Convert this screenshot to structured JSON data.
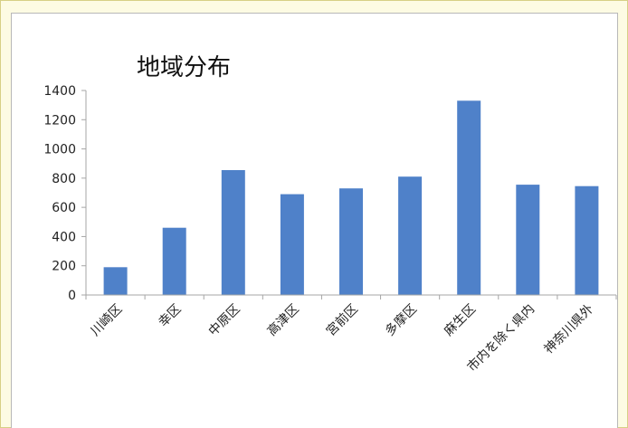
{
  "chart_data": {
    "type": "bar",
    "title": "地域分布",
    "xlabel": "",
    "ylabel": "",
    "categories": [
      "川崎区",
      "幸区",
      "中原区",
      "高津区",
      "宮前区",
      "多摩区",
      "麻生区",
      "市内を除く県内",
      "神奈川県外"
    ],
    "values": [
      190,
      460,
      855,
      690,
      730,
      810,
      1330,
      755,
      745
    ],
    "ylim": [
      0,
      1400
    ],
    "yticks": [
      "0",
      "200",
      "400",
      "600",
      "800",
      "1000",
      "1200",
      "1400"
    ],
    "grid": false,
    "legend": "none",
    "bar_color": "#4f81c9",
    "axis_color": "#a6a6a6"
  }
}
